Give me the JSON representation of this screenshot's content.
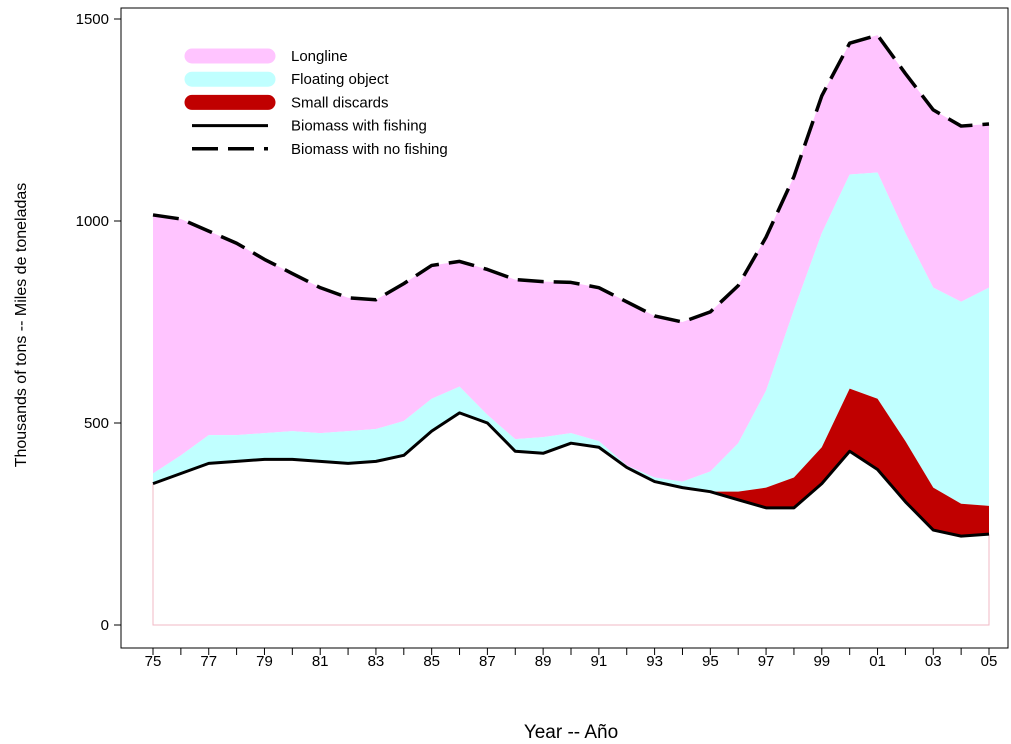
{
  "chart_data": {
    "type": "area",
    "xlabel": "Year -- Año",
    "ylabel": "Thousands of tons -- Miles de toneladas",
    "xlim": [
      1975,
      2005
    ],
    "ylim": [
      0,
      1500
    ],
    "x_ticks": [
      1975,
      1976,
      1977,
      1978,
      1979,
      1980,
      1981,
      1982,
      1983,
      1984,
      1985,
      1986,
      1987,
      1988,
      1989,
      1990,
      1991,
      1992,
      1993,
      1994,
      1995,
      1996,
      1997,
      1998,
      1999,
      2000,
      2001,
      2002,
      2003,
      2004,
      2005
    ],
    "x_tick_labels": [
      "75",
      "77",
      "79",
      "81",
      "83",
      "85",
      "87",
      "89",
      "91",
      "93",
      "95",
      "97",
      "99",
      "01",
      "03",
      "05"
    ],
    "y_ticks": [
      0,
      500,
      1000,
      1500
    ],
    "grid": false,
    "legend_position": "top-left",
    "legend": [
      {
        "label": "Longline",
        "color": "#ffc4ff",
        "style": "band"
      },
      {
        "label": "Floating object",
        "color": "#c0ffff",
        "style": "band"
      },
      {
        "label": "Small discards",
        "color": "#c00000",
        "style": "band"
      },
      {
        "label": "Biomass with fishing",
        "color": "#000000",
        "style": "solid"
      },
      {
        "label": "Biomass with no fishing",
        "color": "#000000",
        "style": "dashed"
      }
    ],
    "x": [
      1975,
      1976,
      1977,
      1978,
      1979,
      1980,
      1981,
      1982,
      1983,
      1984,
      1985,
      1986,
      1987,
      1988,
      1989,
      1990,
      1991,
      1992,
      1993,
      1994,
      1995,
      1996,
      1997,
      1998,
      1999,
      2000,
      2001,
      2002,
      2003,
      2004,
      2005
    ],
    "series": [
      {
        "name": "Biomass with no fishing",
        "color": "#000000",
        "role": "line-dashed",
        "values": [
          1015,
          1005,
          975,
          945,
          905,
          870,
          835,
          810,
          805,
          845,
          890,
          900,
          880,
          855,
          850,
          848,
          835,
          800,
          765,
          750,
          775,
          840,
          960,
          1110,
          1310,
          1440,
          1460,
          1365,
          1275,
          1235,
          1240
        ]
      },
      {
        "name": "Longline",
        "color": "#ffc4ff",
        "role": "band",
        "note": "upper boundary",
        "values": [
          1015,
          1005,
          975,
          945,
          905,
          870,
          835,
          810,
          805,
          845,
          890,
          900,
          880,
          855,
          850,
          848,
          835,
          800,
          765,
          750,
          775,
          840,
          960,
          1110,
          1310,
          1440,
          1460,
          1365,
          1275,
          1235,
          1240
        ]
      },
      {
        "name": "Floating object",
        "color": "#c0ffff",
        "role": "band",
        "note": "upper boundary",
        "values": [
          375,
          420,
          470,
          470,
          475,
          480,
          475,
          480,
          485,
          505,
          560,
          590,
          520,
          460,
          465,
          475,
          455,
          395,
          365,
          355,
          380,
          450,
          580,
          780,
          970,
          1115,
          1120,
          970,
          835,
          800,
          835
        ]
      },
      {
        "name": "Small discards",
        "color": "#c00000",
        "role": "band",
        "note": "upper boundary",
        "values": [
          350,
          375,
          400,
          405,
          410,
          410,
          405,
          400,
          405,
          420,
          480,
          525,
          500,
          430,
          425,
          450,
          440,
          390,
          355,
          340,
          330,
          330,
          340,
          365,
          440,
          585,
          560,
          455,
          340,
          300,
          295
        ]
      },
      {
        "name": "Biomass with fishing",
        "color": "#000000",
        "role": "line-solid",
        "values": [
          350,
          375,
          400,
          405,
          410,
          410,
          405,
          400,
          405,
          420,
          480,
          525,
          500,
          430,
          425,
          450,
          440,
          390,
          355,
          340,
          330,
          310,
          290,
          290,
          350,
          430,
          385,
          305,
          235,
          220,
          225
        ]
      }
    ]
  }
}
